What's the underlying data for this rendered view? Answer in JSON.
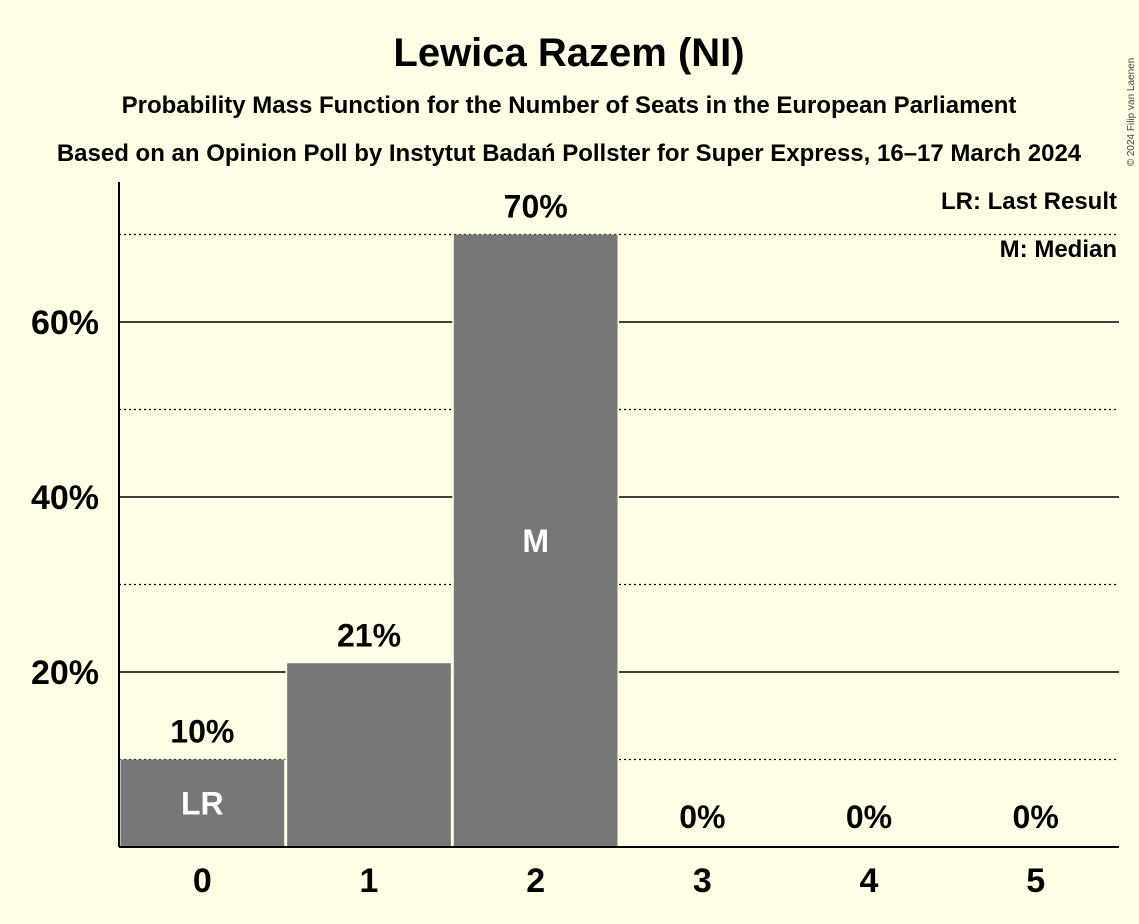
{
  "chart_data": {
    "type": "bar",
    "title": "Lewica Razem (NI)",
    "subtitle": "Probability Mass Function for the Number of Seats in the European Parliament",
    "subtitle2": "Based on an Opinion Poll by Instytut Badań Pollster for Super Express, 16–17 March 2024",
    "copyright": "© 2024 Filip van Laenen",
    "categories": [
      "0",
      "1",
      "2",
      "3",
      "4",
      "5"
    ],
    "values": [
      10,
      21,
      70,
      0,
      0,
      0
    ],
    "value_labels": [
      "10%",
      "21%",
      "70%",
      "0%",
      "0%",
      "0%"
    ],
    "bar_markers": [
      {
        "category": "0",
        "text": "LR"
      },
      {
        "category": "2",
        "text": "M"
      }
    ],
    "ylim": [
      0,
      76
    ],
    "yticks": [
      20,
      40,
      60
    ],
    "ytick_labels": [
      "20%",
      "40%",
      "60%"
    ],
    "dotted_gridlines": [
      10,
      30,
      50,
      70
    ],
    "legend": [
      "LR: Last Result",
      "M: Median"
    ],
    "legend_position": "top-right",
    "colors": {
      "bar": "#777777",
      "background": "#fffde6"
    }
  }
}
